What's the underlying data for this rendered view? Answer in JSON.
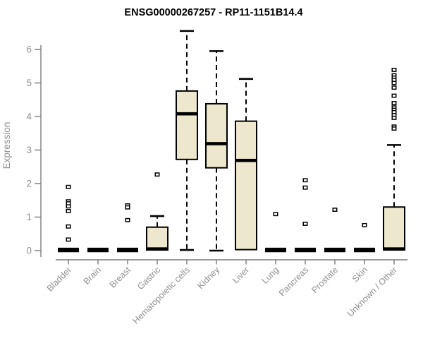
{
  "chart_data": {
    "type": "boxplot",
    "title": "ENSG00000267257 - RP11-1151B14.4",
    "ylabel": "Expression",
    "ylim": [
      0,
      6.6
    ],
    "yticks": [
      0,
      1,
      2,
      3,
      4,
      5,
      6
    ],
    "grid": false,
    "legend": "none",
    "colors": {
      "box_fill": "#EDE8CD",
      "box_stroke": "#000000",
      "median": "#000000",
      "whisker": "#000000",
      "outlier_fill": "#ffffff",
      "outlier_stroke": "#000000",
      "axis_line": "#7a7a7a",
      "tick_label": "#8f8f8f",
      "title": "#000000"
    },
    "categories": [
      "Bladder",
      "Brain",
      "Breast",
      "Gastric",
      "Hematopoietic cells",
      "Kidney",
      "Liver",
      "Lung",
      "Pancreas",
      "Prostate",
      "Skin",
      "Unknown / Other"
    ],
    "boxes": [
      {
        "label": "Bladder",
        "q1": 0,
        "median": 0.02,
        "q3": 0.02,
        "whisker_low": 0,
        "whisker_high": 0.02,
        "outliers": [
          1.9,
          1.47,
          1.41,
          1.32,
          1.18,
          0.72,
          0.33
        ]
      },
      {
        "label": "Brain",
        "q1": 0,
        "median": 0.02,
        "q3": 0.02,
        "whisker_low": 0,
        "whisker_high": 0.02,
        "outliers": []
      },
      {
        "label": "Breast",
        "q1": 0,
        "median": 0.02,
        "q3": 0.02,
        "whisker_low": 0,
        "whisker_high": 0.02,
        "outliers": [
          1.35,
          1.29,
          0.91
        ]
      },
      {
        "label": "Gastric",
        "q1": 0.02,
        "median": 0.05,
        "q3": 0.7,
        "whisker_low": 0.02,
        "whisker_high": 1.03,
        "outliers": [
          2.27
        ]
      },
      {
        "label": "Hematopoietic cells",
        "q1": 2.72,
        "median": 4.08,
        "q3": 4.76,
        "whisker_low": 0.02,
        "whisker_high": 6.55,
        "outliers": []
      },
      {
        "label": "Kidney",
        "q1": 2.47,
        "median": 3.19,
        "q3": 4.38,
        "whisker_low": 0.0,
        "whisker_high": 5.95,
        "outliers": []
      },
      {
        "label": "Liver",
        "q1": 0.03,
        "median": 2.69,
        "q3": 3.86,
        "whisker_low": 0.03,
        "whisker_high": 5.12,
        "outliers": []
      },
      {
        "label": "Lung",
        "q1": 0,
        "median": 0.02,
        "q3": 0.02,
        "whisker_low": 0,
        "whisker_high": 0.02,
        "outliers": [
          1.09
        ]
      },
      {
        "label": "Pancreas",
        "q1": 0,
        "median": 0.02,
        "q3": 0.02,
        "whisker_low": 0,
        "whisker_high": 0.02,
        "outliers": [
          2.1,
          1.88,
          0.8
        ]
      },
      {
        "label": "Prostate",
        "q1": 0,
        "median": 0.02,
        "q3": 0.02,
        "whisker_low": 0,
        "whisker_high": 0.02,
        "outliers": [
          1.22
        ]
      },
      {
        "label": "Skin",
        "q1": 0,
        "median": 0.02,
        "q3": 0.02,
        "whisker_low": 0,
        "whisker_high": 0.02,
        "outliers": [
          0.76
        ]
      },
      {
        "label": "Unknown / Other",
        "q1": 0.02,
        "median": 0.05,
        "q3": 1.3,
        "whisker_low": 0.02,
        "whisker_high": 3.15,
        "outliers": [
          5.39,
          5.23,
          5.16,
          5.09,
          5.0,
          4.86,
          4.62,
          4.4,
          4.27,
          4.2,
          4.13,
          4.04,
          3.96,
          3.7,
          3.64
        ]
      }
    ]
  }
}
